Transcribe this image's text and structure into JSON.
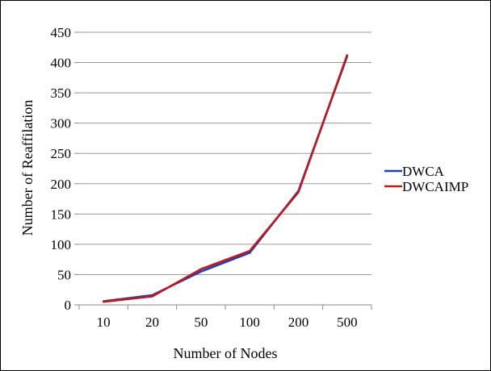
{
  "chart_data": {
    "type": "line",
    "categories": [
      "10",
      "20",
      "50",
      "100",
      "200",
      "500"
    ],
    "series": [
      {
        "name": "DWCA",
        "color": "#1f3fb4",
        "values": [
          6,
          16,
          55,
          86,
          188,
          410
        ]
      },
      {
        "name": "DWCAIMP",
        "color": "#c0171f",
        "values": [
          5,
          14,
          59,
          89,
          186,
          412
        ]
      }
    ],
    "xlabel": "Number of Nodes",
    "ylabel": "Number of Reaffilation",
    "ylim": [
      0,
      450
    ],
    "yticks": [
      0,
      50,
      100,
      150,
      200,
      250,
      300,
      350,
      400,
      450
    ],
    "grid": true,
    "legend_position": "right"
  }
}
